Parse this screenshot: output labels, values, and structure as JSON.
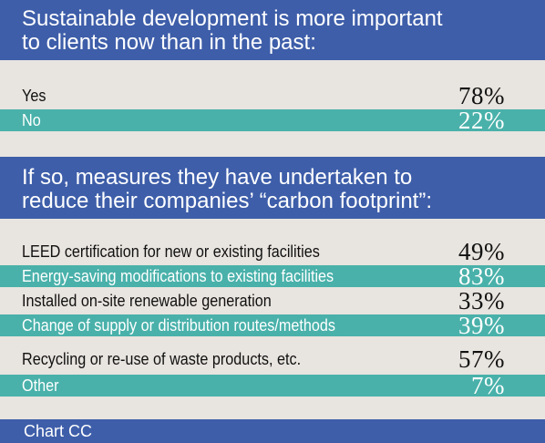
{
  "colors": {
    "header": "#3e5ea9",
    "highlight_row": "#49b1aa",
    "background": "#e8e4df"
  },
  "chart_data": [
    {
      "type": "table",
      "title_lines": [
        "Sustainable development is more important",
        "to clients now than in the past:"
      ],
      "categories": [
        "Yes",
        "No"
      ],
      "values": [
        78,
        22
      ],
      "value_labels": [
        "78%",
        "22%"
      ]
    },
    {
      "type": "table",
      "title_lines": [
        "If so, measures they have undertaken to",
        "reduce their companies’ “carbon footprint”:"
      ],
      "categories": [
        "LEED certification for new or existing facilities",
        "Energy-saving modifications to existing facilities",
        "Installed on-site renewable generation",
        "Change of supply or distribution routes/methods",
        "Recycling or re-use of waste products, etc.",
        "Other"
      ],
      "values": [
        49,
        83,
        33,
        39,
        57,
        7
      ],
      "value_labels": [
        "49%",
        "83%",
        "33%",
        "39%",
        "57%",
        "7%"
      ]
    }
  ],
  "footer": "Chart CC"
}
